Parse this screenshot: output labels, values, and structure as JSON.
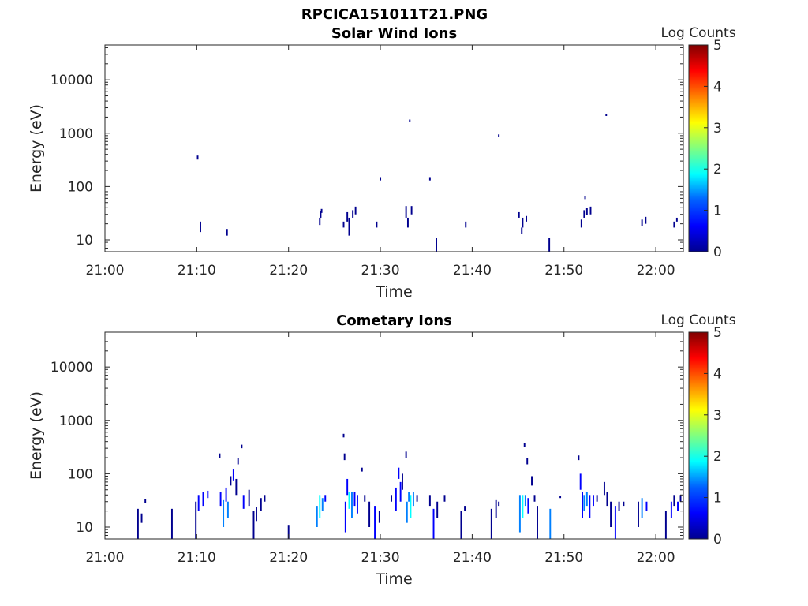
{
  "figure_title": "RPCICA151011T21.PNG",
  "colormap": [
    "#00008f",
    "#0000ff",
    "#0080ff",
    "#00ffff",
    "#80ff80",
    "#ffff00",
    "#ff8000",
    "#ff0000",
    "#800000"
  ],
  "chart_data": [
    {
      "type": "heatmap",
      "title": "Solar Wind Ions",
      "xlabel": "Time",
      "ylabel": "Energy (eV)",
      "x_unit": "minutes after 21:00",
      "xlim": [
        0,
        63
      ],
      "x_ticks": [
        0,
        10,
        20,
        30,
        40,
        50,
        60
      ],
      "x_tick_labels": [
        "21:00",
        "21:10",
        "21:20",
        "21:30",
        "21:40",
        "21:50",
        "22:00"
      ],
      "yscale": "log",
      "ylim": [
        6,
        45000
      ],
      "y_ticks": [
        10,
        100,
        1000,
        10000
      ],
      "y_tick_labels": [
        "10",
        "100",
        "1000",
        "10000"
      ],
      "colorbar": {
        "label": "Log Counts",
        "range": [
          0,
          5
        ],
        "ticks": [
          0,
          1,
          2,
          3,
          4,
          5
        ]
      },
      "cells": [
        [
          10.4,
          14,
          22,
          0.1
        ],
        [
          10.1,
          320,
          380,
          0.1
        ],
        [
          13.3,
          12,
          16,
          0.1
        ],
        [
          23.4,
          19,
          26,
          0.1
        ],
        [
          23.5,
          26,
          34,
          0.1
        ],
        [
          23.6,
          32,
          38,
          0.1
        ],
        [
          26.0,
          17,
          22,
          0.1
        ],
        [
          26.4,
          22,
          33,
          0.1
        ],
        [
          26.6,
          12,
          26,
          0.1
        ],
        [
          27.0,
          26,
          36,
          0.1
        ],
        [
          27.3,
          30,
          42,
          0.1
        ],
        [
          29.6,
          17,
          22,
          0.1
        ],
        [
          30.0,
          130,
          150,
          0.1
        ],
        [
          32.8,
          26,
          43,
          0.1
        ],
        [
          33.0,
          17,
          26,
          0.1
        ],
        [
          33.4,
          30,
          43,
          0.1
        ],
        [
          33.2,
          1600,
          1800,
          0.1
        ],
        [
          35.4,
          130,
          150,
          0.1
        ],
        [
          36.1,
          6,
          11,
          0.1
        ],
        [
          39.3,
          17,
          22,
          0.1
        ],
        [
          42.9,
          850,
          950,
          0.1
        ],
        [
          45.1,
          26,
          33,
          0.1
        ],
        [
          45.5,
          17,
          26,
          0.1
        ],
        [
          45.9,
          22,
          28,
          0.1
        ],
        [
          45.4,
          13,
          17,
          0.1
        ],
        [
          48.4,
          6,
          11,
          0.1
        ],
        [
          51.9,
          17,
          24,
          0.1
        ],
        [
          52.2,
          26,
          36,
          0.1
        ],
        [
          52.3,
          58,
          66,
          0.1
        ],
        [
          52.5,
          29,
          40,
          0.1
        ],
        [
          52.9,
          30,
          42,
          0.1
        ],
        [
          54.6,
          2100,
          2300,
          0.1
        ],
        [
          58.5,
          18,
          24,
          0.1
        ],
        [
          58.9,
          20,
          27,
          0.1
        ],
        [
          62.0,
          17,
          22,
          0.1
        ],
        [
          62.3,
          22,
          26,
          0.1
        ]
      ]
    },
    {
      "type": "heatmap",
      "title": "Cometary Ions",
      "xlabel": "Time",
      "ylabel": "Energy (eV)",
      "x_unit": "minutes after 21:00",
      "xlim": [
        0,
        63
      ],
      "x_ticks": [
        0,
        10,
        20,
        30,
        40,
        50,
        60
      ],
      "x_tick_labels": [
        "21:00",
        "21:10",
        "21:20",
        "21:30",
        "21:40",
        "21:50",
        "22:00"
      ],
      "yscale": "log",
      "ylim": [
        6,
        45000
      ],
      "y_ticks": [
        10,
        100,
        1000,
        10000
      ],
      "y_tick_labels": [
        "10",
        "100",
        "1000",
        "10000"
      ],
      "colorbar": {
        "label": "Log Counts",
        "range": [
          0,
          5
        ],
        "ticks": [
          0,
          1,
          2,
          3,
          4,
          5
        ]
      },
      "cells": [
        [
          3.6,
          6,
          22,
          0.2
        ],
        [
          4.0,
          12,
          18,
          0.3
        ],
        [
          4.4,
          28,
          34,
          0.1
        ],
        [
          7.3,
          6,
          22,
          0.2
        ],
        [
          9.9,
          6,
          30,
          0.3
        ],
        [
          10.2,
          20,
          40,
          0.6
        ],
        [
          10.7,
          25,
          45,
          0.8
        ],
        [
          11.2,
          35,
          48,
          0.4
        ],
        [
          12.5,
          200,
          240,
          0.1
        ],
        [
          12.6,
          25,
          45,
          0.6
        ],
        [
          12.9,
          10,
          32,
          1.2
        ],
        [
          13.2,
          30,
          55,
          0.6
        ],
        [
          13.4,
          15,
          30,
          1.5
        ],
        [
          13.7,
          60,
          90,
          0.3
        ],
        [
          14.0,
          75,
          120,
          0.5
        ],
        [
          14.3,
          40,
          80,
          0.3
        ],
        [
          14.5,
          150,
          200,
          0.2
        ],
        [
          14.9,
          300,
          350,
          0.1
        ],
        [
          15.1,
          22,
          40,
          0.6
        ],
        [
          15.7,
          25,
          50,
          0.2
        ],
        [
          16.2,
          6,
          20,
          0.3
        ],
        [
          16.5,
          13,
          24,
          0.2
        ],
        [
          17.0,
          20,
          35,
          0.3
        ],
        [
          17.4,
          30,
          40,
          0.2
        ],
        [
          20.0,
          6,
          11,
          0.2
        ],
        [
          23.1,
          10,
          25,
          1.3
        ],
        [
          23.4,
          15,
          40,
          1.6
        ],
        [
          23.7,
          20,
          35,
          1.0
        ],
        [
          24.0,
          30,
          40,
          0.6
        ],
        [
          26.0,
          480,
          560,
          0.1
        ],
        [
          26.1,
          180,
          240,
          0.1
        ],
        [
          26.2,
          8,
          30,
          0.5
        ],
        [
          26.4,
          40,
          80,
          0.9
        ],
        [
          26.6,
          22,
          45,
          1.8
        ],
        [
          26.9,
          15,
          45,
          1.5
        ],
        [
          27.2,
          25,
          45,
          0.6
        ],
        [
          27.5,
          18,
          40,
          0.4
        ],
        [
          28.0,
          110,
          130,
          0.1
        ],
        [
          28.3,
          30,
          40,
          0.3
        ],
        [
          28.8,
          10,
          30,
          0.3
        ],
        [
          29.4,
          6,
          25,
          0.4
        ],
        [
          29.9,
          12,
          20,
          0.3
        ],
        [
          31.2,
          30,
          40,
          0.2
        ],
        [
          31.7,
          20,
          55,
          0.8
        ],
        [
          32.0,
          80,
          130,
          0.5
        ],
        [
          32.2,
          30,
          70,
          0.7
        ],
        [
          32.4,
          50,
          100,
          0.3
        ],
        [
          32.8,
          200,
          260,
          0.1
        ],
        [
          32.9,
          12,
          30,
          1.0
        ],
        [
          33.1,
          30,
          45,
          1.4
        ],
        [
          33.3,
          15,
          40,
          1.6
        ],
        [
          33.6,
          25,
          45,
          1.2
        ],
        [
          34.0,
          30,
          40,
          0.3
        ],
        [
          35.4,
          25,
          40,
          0.1
        ],
        [
          35.8,
          6,
          22,
          0.4
        ],
        [
          36.2,
          15,
          30,
          0.3
        ],
        [
          37.0,
          30,
          40,
          0.1
        ],
        [
          38.8,
          6,
          20,
          0.3
        ],
        [
          39.2,
          20,
          25,
          0.1
        ],
        [
          42.1,
          6,
          22,
          0.3
        ],
        [
          42.6,
          15,
          32,
          0.3
        ],
        [
          42.9,
          25,
          30,
          0.1
        ],
        [
          45.2,
          8,
          40,
          1.0
        ],
        [
          45.5,
          15,
          40,
          1.6
        ],
        [
          45.7,
          320,
          380,
          0.1
        ],
        [
          45.8,
          25,
          40,
          1.0
        ],
        [
          46.0,
          150,
          200,
          0.1
        ],
        [
          46.1,
          18,
          35,
          0.8
        ],
        [
          46.5,
          60,
          90,
          0.2
        ],
        [
          46.8,
          30,
          40,
          0.3
        ],
        [
          47.1,
          6,
          25,
          0.3
        ],
        [
          48.5,
          6,
          22,
          1.0
        ],
        [
          49.6,
          35,
          38,
          0.1
        ],
        [
          51.6,
          180,
          220,
          0.1
        ],
        [
          51.8,
          50,
          100,
          0.5
        ],
        [
          52.0,
          15,
          45,
          0.8
        ],
        [
          52.2,
          20,
          40,
          1.2
        ],
        [
          52.5,
          25,
          45,
          1.3
        ],
        [
          52.8,
          15,
          40,
          0.9
        ],
        [
          53.2,
          25,
          40,
          0.6
        ],
        [
          53.6,
          30,
          40,
          0.3
        ],
        [
          54.4,
          40,
          70,
          0.2
        ],
        [
          54.7,
          25,
          45,
          0.2
        ],
        [
          55.1,
          10,
          30,
          0.3
        ],
        [
          55.6,
          6,
          25,
          0.4
        ],
        [
          56.0,
          20,
          30,
          0.1
        ],
        [
          56.5,
          25,
          30,
          0.1
        ],
        [
          58.1,
          10,
          30,
          0.3
        ],
        [
          58.5,
          15,
          35,
          1.3
        ],
        [
          59.0,
          20,
          30,
          0.4
        ],
        [
          61.1,
          6,
          20,
          0.3
        ],
        [
          61.7,
          15,
          30,
          0.5
        ],
        [
          62.0,
          25,
          40,
          0.3
        ],
        [
          62.4,
          20,
          30,
          0.6
        ],
        [
          62.7,
          30,
          40,
          0.3
        ]
      ]
    }
  ]
}
